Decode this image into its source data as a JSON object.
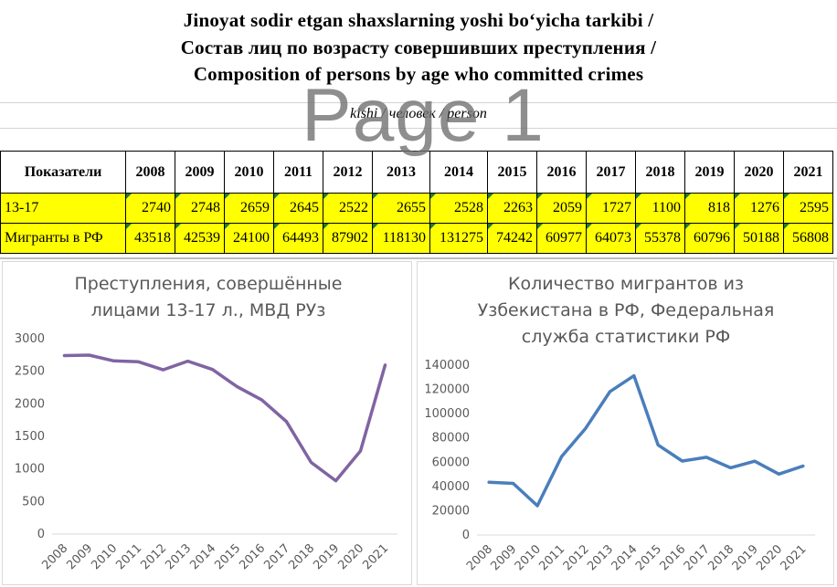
{
  "header": {
    "title_lines": [
      "Jinoyat sodir etgan shaxslarning yoshi bo‘yicha tarkibi /",
      "Состав лиц по возрасту совершивших преступления /",
      "Composition of persons by age who committed crimes"
    ],
    "unit": "kishi / человек / person",
    "watermark": "Page 1"
  },
  "table": {
    "corner_label": "Показатели",
    "years": [
      "2008",
      "2009",
      "2010",
      "2011",
      "2012",
      "2013",
      "2014",
      "2015",
      "2016",
      "2017",
      "2018",
      "2019",
      "2020",
      "2021"
    ],
    "rows": [
      {
        "label": "13-17",
        "values": [
          "2740",
          "2748",
          "2659",
          "2645",
          "2522",
          "2655",
          "2528",
          "2263",
          "2059",
          "1727",
          "1100",
          "818",
          "1276",
          "2595"
        ]
      },
      {
        "label": "Мигранты в РФ",
        "values": [
          "43518",
          "42539",
          "24100",
          "64493",
          "87902",
          "118130",
          "131275",
          "74242",
          "60977",
          "64073",
          "55378",
          "60796",
          "50188",
          "56808"
        ]
      }
    ],
    "fill_color": "#ffff00"
  },
  "chart_data": [
    {
      "type": "line",
      "title_lines": [
        "Преступления, совершённые",
        "лицами 13-17 л., МВД РУз"
      ],
      "categories": [
        "2008",
        "2009",
        "2010",
        "2011",
        "2012",
        "2013",
        "2014",
        "2015",
        "2016",
        "2017",
        "2018",
        "2019",
        "2020",
        "2021"
      ],
      "series": [
        {
          "values": [
            2740,
            2748,
            2659,
            2645,
            2522,
            2655,
            2528,
            2263,
            2059,
            1727,
            1100,
            818,
            1276,
            2595
          ],
          "color": "#8064a2"
        }
      ],
      "y_ticks": [
        "0",
        "500",
        "1000",
        "1500",
        "2000",
        "2500",
        "3000"
      ],
      "ylim": [
        0,
        3000
      ],
      "grid": false,
      "legend": "none"
    },
    {
      "type": "line",
      "title_lines": [
        "Количество мигрантов из",
        "Узбекистана в РФ, Федеральная",
        "служба статистики РФ"
      ],
      "categories": [
        "2008",
        "2009",
        "2010",
        "2011",
        "2012",
        "2013",
        "2014",
        "2015",
        "2016",
        "2017",
        "2018",
        "2019",
        "2020",
        "2021"
      ],
      "series": [
        {
          "values": [
            43518,
            42539,
            24100,
            64493,
            87902,
            118130,
            131275,
            74242,
            60977,
            64073,
            55378,
            60796,
            50188,
            56808
          ],
          "color": "#4a7ebb"
        }
      ],
      "y_ticks": [
        "0",
        "20000",
        "40000",
        "60000",
        "80000",
        "100000",
        "120000",
        "140000"
      ],
      "ylim": [
        0,
        140000
      ],
      "grid": false,
      "legend": "none"
    }
  ]
}
